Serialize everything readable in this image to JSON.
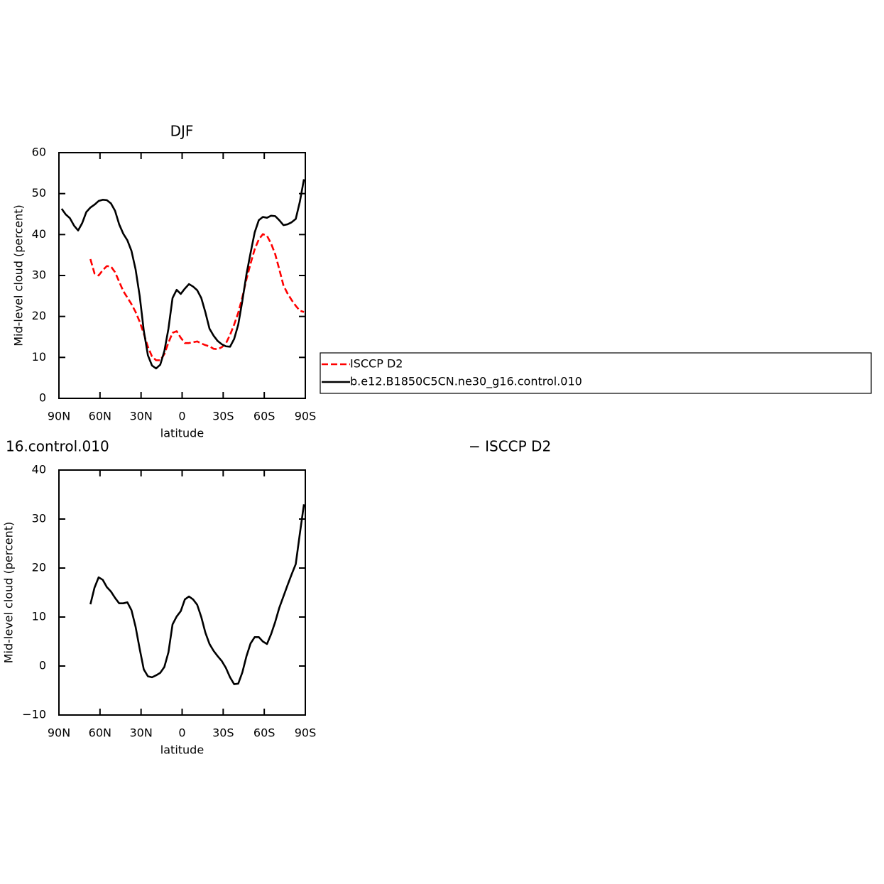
{
  "chart_data": [
    {
      "type": "line",
      "title": "DJF",
      "xlabel": "latitude",
      "ylabel": "Mid-level cloud (percent)",
      "x": [
        88,
        85,
        82,
        79,
        76,
        73,
        70,
        67,
        64,
        61,
        58,
        55,
        52,
        49,
        46,
        43,
        40,
        37,
        34,
        31,
        28,
        25,
        22,
        19,
        16,
        13,
        10,
        7,
        4,
        1,
        -2,
        -5,
        -8,
        -11,
        -14,
        -17,
        -20,
        -23,
        -26,
        -29,
        -32,
        -35,
        -38,
        -41,
        -44,
        -47,
        -50,
        -53,
        -56,
        -59,
        -62,
        -65,
        -68,
        -71,
        -74,
        -77,
        -80,
        -83,
        -86,
        -89
      ],
      "xlim": [
        90,
        -90
      ],
      "xticks": [
        {
          "value": 90,
          "label": "90N"
        },
        {
          "value": 60,
          "label": "60N"
        },
        {
          "value": 30,
          "label": "30N"
        },
        0,
        {
          "value": -30,
          "label": "30S"
        },
        {
          "value": -60,
          "label": "60S"
        },
        {
          "value": -90,
          "label": "90S"
        }
      ],
      "ylim": [
        0,
        60
      ],
      "yticks": [
        0,
        10,
        20,
        30,
        40,
        50,
        60
      ],
      "series": [
        {
          "name": "ISCCP D2",
          "color": "#ff0000",
          "linestyle": "dashed",
          "values": [
            null,
            null,
            null,
            null,
            null,
            null,
            null,
            34,
            30.5,
            30,
            31.3,
            32.3,
            32.2,
            30.8,
            28.5,
            26.2,
            24.6,
            23,
            21.1,
            18.7,
            15.8,
            12.6,
            10.2,
            9.3,
            9.3,
            10.8,
            13.6,
            16,
            16.4,
            14.8,
            13.5,
            13.5,
            13.7,
            13.9,
            13.4,
            13,
            12.7,
            12.1,
            12,
            12.5,
            13.4,
            15.5,
            18,
            20.9,
            24.7,
            29.1,
            32.9,
            36.4,
            38.8,
            40.1,
            39.7,
            37.8,
            35.2,
            31.5,
            27.6,
            25.6,
            24,
            22.6,
            21.4,
            21.1
          ]
        },
        {
          "name": "b.e12.B1850C5CN.ne30_g16.control.010",
          "color": "#000000",
          "linestyle": "solid",
          "values": [
            46.3,
            44.9,
            44,
            42.2,
            41,
            42.8,
            45.5,
            46.6,
            47.3,
            48.2,
            48.5,
            48.4,
            47.6,
            45.8,
            42.5,
            40.2,
            38.6,
            36,
            31.5,
            25,
            16.5,
            10.5,
            8,
            7.3,
            8.2,
            11.5,
            17,
            24.5,
            26.5,
            25.5,
            26.8,
            27.9,
            27.3,
            26.4,
            24.5,
            21,
            17,
            15.3,
            14,
            13.2,
            12.7,
            12.6,
            14.5,
            18,
            23.8,
            30.3,
            35.5,
            40.5,
            43.5,
            44.3,
            44.1,
            44.6,
            44.5,
            43.5,
            42.3,
            42.5,
            43,
            43.8,
            48,
            53.5
          ]
        }
      ]
    },
    {
      "type": "line",
      "title": "16.control.010",
      "title_right": "− ISCCP D2",
      "xlabel": "latitude",
      "ylabel": "Mid-level cloud (percent)",
      "x": [
        88,
        85,
        82,
        79,
        76,
        73,
        70,
        67,
        64,
        61,
        58,
        55,
        52,
        49,
        46,
        43,
        40,
        37,
        34,
        31,
        28,
        25,
        22,
        19,
        16,
        13,
        10,
        7,
        4,
        1,
        -2,
        -5,
        -8,
        -11,
        -14,
        -17,
        -20,
        -23,
        -26,
        -29,
        -32,
        -35,
        -38,
        -41,
        -44,
        -47,
        -50,
        -53,
        -56,
        -59,
        -62,
        -65,
        -68,
        -71,
        -74,
        -77,
        -80,
        -83,
        -86,
        -89
      ],
      "xlim": [
        90,
        -90
      ],
      "xticks": [
        {
          "value": 90,
          "label": "90N"
        },
        {
          "value": 60,
          "label": "60N"
        },
        {
          "value": 30,
          "label": "30N"
        },
        0,
        {
          "value": -30,
          "label": "30S"
        },
        {
          "value": -60,
          "label": "60S"
        },
        {
          "value": -90,
          "label": "90S"
        }
      ],
      "ylim": [
        -10,
        40
      ],
      "yticks": [
        {
          "value": -10,
          "label": "−10"
        },
        0,
        10,
        20,
        30,
        40
      ],
      "color": "#000000",
      "linestyle": "solid",
      "values": [
        null,
        null,
        null,
        null,
        null,
        null,
        null,
        12.6,
        16,
        18.1,
        17.6,
        16.1,
        15.2,
        13.9,
        12.8,
        12.8,
        13,
        11.4,
        8,
        3.5,
        -0.7,
        -2.1,
        -2.3,
        -1.9,
        -1.4,
        -0.2,
        2.8,
        8.5,
        10.1,
        11.2,
        13.6,
        14.2,
        13.6,
        12.5,
        10,
        6.8,
        4.5,
        3.1,
        2,
        1,
        -0.4,
        -2.3,
        -3.7,
        -3.6,
        -1.3,
        2,
        4.6,
        5.9,
        5.9,
        5,
        4.5,
        6.5,
        9,
        11.9,
        14.2,
        16.5,
        18.7,
        20.8,
        27,
        33
      ]
    }
  ]
}
